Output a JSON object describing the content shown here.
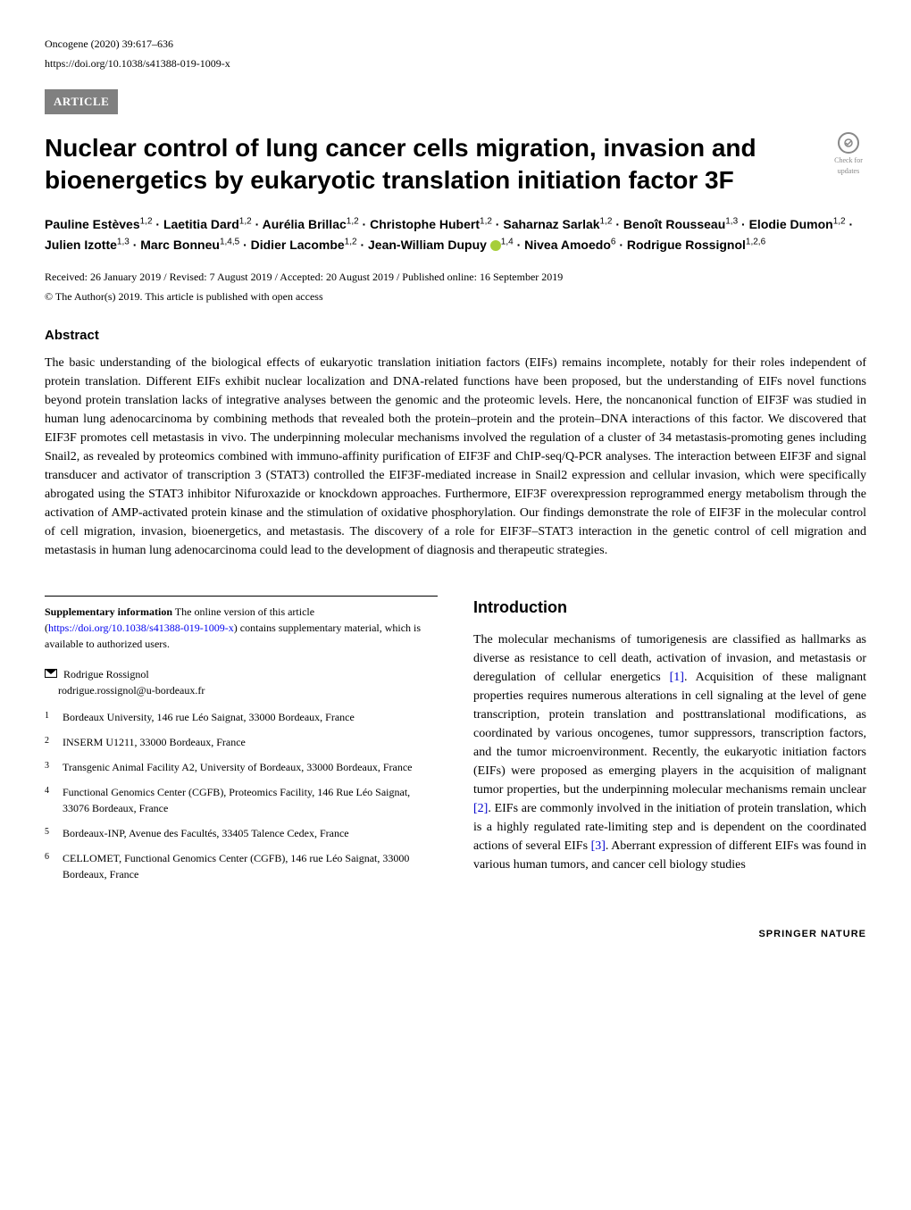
{
  "header": {
    "journal_info": "Oncogene (2020) 39:617–636",
    "doi": "https://doi.org/10.1038/s41388-019-1009-x",
    "article_badge": "ARTICLE",
    "check_updates_label": "Check for updates"
  },
  "title": "Nuclear control of lung cancer cells migration, invasion and bioenergetics by eukaryotic translation initiation factor 3F",
  "authors_html": "Pauline Estèves<sup>1,2</sup> · Laetitia Dard<sup>1,2</sup> · Aurélia Brillac<sup>1,2</sup> · Christophe Hubert<sup>1,2</sup> · Saharnaz Sarlak<sup>1,2</sup> · Benoît Rousseau<sup>1,3</sup> · Elodie Dumon<sup>1,2</sup> · Julien Izotte<sup>1,3</sup> · Marc Bonneu<sup>1,4,5</sup> · Didier Lacombe<sup>1,2</sup> · Jean-William Dupuy <span class=\"orcid-icon\"></span><sup>1,4</sup> · Nivea Amoedo<sup>6</sup> · Rodrigue Rossignol<sup>1,2,6</sup>",
  "dates": "Received: 26 January 2019 / Revised: 7 August 2019 / Accepted: 20 August 2019 / Published online: 16 September 2019",
  "copyright": "© The Author(s) 2019. This article is published with open access",
  "abstract_heading": "Abstract",
  "abstract": "The basic understanding of the biological effects of eukaryotic translation initiation factors (EIFs) remains incomplete, notably for their roles independent of protein translation. Different EIFs exhibit nuclear localization and DNA-related functions have been proposed, but the understanding of EIFs novel functions beyond protein translation lacks of integrative analyses between the genomic and the proteomic levels. Here, the noncanonical function of EIF3F was studied in human lung adenocarcinoma by combining methods that revealed both the protein–protein and the protein–DNA interactions of this factor. We discovered that EIF3F promotes cell metastasis in vivo. The underpinning molecular mechanisms involved the regulation of a cluster of 34 metastasis-promoting genes including Snail2, as revealed by proteomics combined with immuno-affinity purification of EIF3F and ChIP-seq/Q-PCR analyses. The interaction between EIF3F and signal transducer and activator of transcription 3 (STAT3) controlled the EIF3F-mediated increase in Snail2 expression and cellular invasion, which were specifically abrogated using the STAT3 inhibitor Nifuroxazide or knockdown approaches. Furthermore, EIF3F overexpression reprogrammed energy metabolism through the activation of AMP-activated protein kinase and the stimulation of oxidative phosphorylation. Our findings demonstrate the role of EIF3F in the molecular control of cell migration, invasion, bioenergetics, and metastasis. The discovery of a role for EIF3F–STAT3 interaction in the genetic control of cell migration and metastasis in human lung adenocarcinoma could lead to the development of diagnosis and therapeutic strategies.",
  "supplementary": {
    "label": "Supplementary information",
    "text_before": " The online version of this article (",
    "link": "https://doi.org/10.1038/s41388-019-1009-x",
    "text_after": ") contains supplementary material, which is available to authorized users."
  },
  "corresponding": {
    "name": "Rodrigue Rossignol",
    "email": "rodrigue.rossignol@u-bordeaux.fr"
  },
  "affiliations": [
    {
      "num": "1",
      "text": "Bordeaux University, 146 rue Léo Saignat, 33000 Bordeaux, France"
    },
    {
      "num": "2",
      "text": "INSERM U1211, 33000 Bordeaux, France"
    },
    {
      "num": "3",
      "text": "Transgenic Animal Facility A2, University of Bordeaux, 33000 Bordeaux, France"
    },
    {
      "num": "4",
      "text": "Functional Genomics Center (CGFB), Proteomics Facility, 146 Rue Léo Saignat, 33076 Bordeaux, France"
    },
    {
      "num": "5",
      "text": "Bordeaux-INP, Avenue des Facultés, 33405 Talence Cedex, France"
    },
    {
      "num": "6",
      "text": "CELLOMET, Functional Genomics Center (CGFB), 146 rue Léo Saignat, 33000 Bordeaux, France"
    }
  ],
  "introduction": {
    "heading": "Introduction",
    "text": "The molecular mechanisms of tumorigenesis are classified as hallmarks as diverse as resistance to cell death, activation of invasion, and metastasis or deregulation of cellular energetics [1]. Acquisition of these malignant properties requires numerous alterations in cell signaling at the level of gene transcription, protein translation and posttranslational modifications, as coordinated by various oncogenes, tumor suppressors, transcription factors, and the tumor microenvironment. Recently, the eukaryotic initiation factors (EIFs) were proposed as emerging players in the acquisition of malignant tumor properties, but the underpinning molecular mechanisms remain unclear [2]. EIFs are commonly involved in the initiation of protein translation, which is a highly regulated rate-limiting step and is dependent on the coordinated actions of several EIFs [3]. Aberrant expression of different EIFs was found in various human tumors, and cancer cell biology studies"
  },
  "footer": "SPRINGER NATURE",
  "colors": {
    "badge_bg": "#808080",
    "badge_text": "#ffffff",
    "link": "#0000ee",
    "orcid": "#a6ce39",
    "text": "#000000",
    "bg": "#ffffff"
  },
  "typography": {
    "title_fontsize": 28,
    "body_fontsize": 14,
    "small_fontsize": 12,
    "heading_family": "Arial, sans-serif",
    "body_family": "Georgia, Times New Roman, serif"
  }
}
